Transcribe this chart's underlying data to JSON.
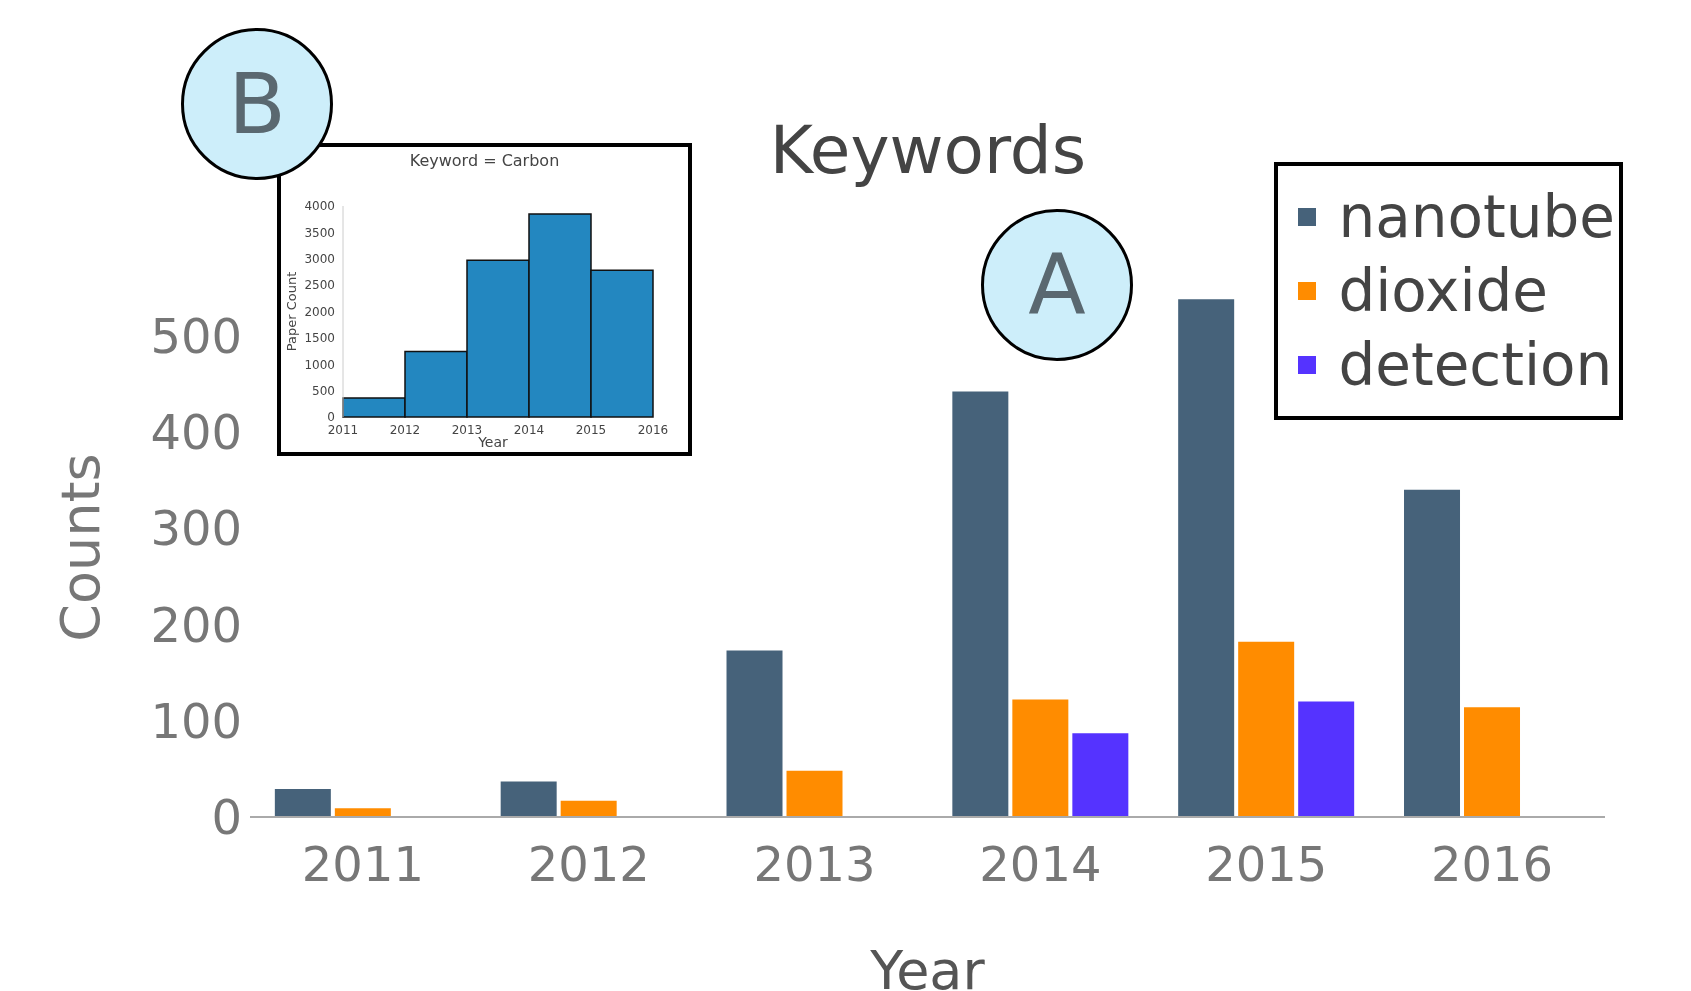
{
  "chart_data": [
    {
      "type": "bar",
      "title": "Keywords",
      "xlabel": "Year",
      "ylabel": "Counts",
      "categories": [
        "2011",
        "2012",
        "2013",
        "2014",
        "2015",
        "2016"
      ],
      "series": [
        {
          "name": "nanotube",
          "color": "#46627a",
          "values": [
            29,
            37,
            173,
            442,
            538,
            340
          ]
        },
        {
          "name": "dioxide",
          "color": "#ff8c00",
          "values": [
            9,
            17,
            48,
            122,
            182,
            114
          ]
        },
        {
          "name": "detection",
          "color": "#5533ff",
          "values": [
            null,
            null,
            null,
            87,
            120,
            null
          ]
        }
      ],
      "ylim": [
        0,
        560
      ],
      "yticks": [
        0,
        100,
        200,
        300,
        400,
        500
      ],
      "legend": "top right",
      "annotations": [
        "A"
      ]
    },
    {
      "type": "histogram",
      "title": "Keyword = Carbon",
      "xlabel": "Year",
      "ylabel": "Paper Count",
      "bins": [
        2011,
        2012,
        2013,
        2014,
        2015,
        2016
      ],
      "values": [
        360,
        1240,
        2970,
        3850,
        2780
      ],
      "color": "#2387c0",
      "xlim": [
        2011,
        2016
      ],
      "xticks": [
        2011,
        2012,
        2013,
        2014,
        2015,
        2016
      ],
      "ylim": [
        0,
        4000
      ],
      "yticks": [
        0,
        500,
        1000,
        1500,
        2000,
        2500,
        3000,
        3500,
        4000
      ],
      "annotations": [
        "B"
      ]
    }
  ]
}
